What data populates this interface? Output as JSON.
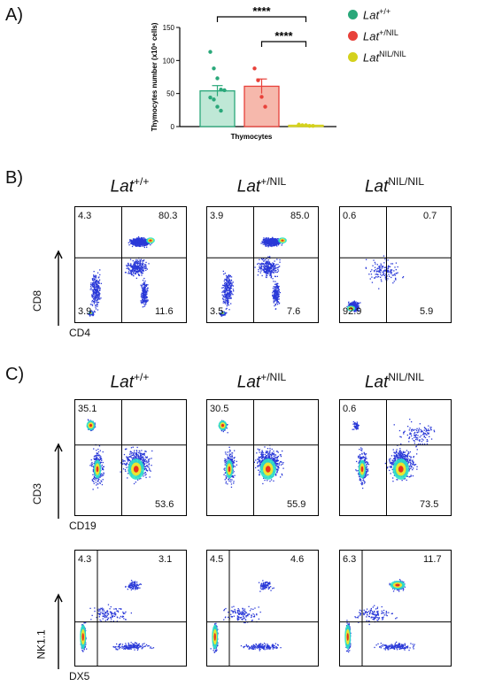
{
  "panels": {
    "a": "A)",
    "b": "B)",
    "c": "C)"
  },
  "chart_data": [
    {
      "type": "bar",
      "categories": [
        "Thymocytes"
      ],
      "xlabel": "Thymocytes",
      "ylabel": "Thymocytes number (x10⁶ cells)",
      "ylim": [
        0,
        150
      ],
      "yticks": [
        0,
        50,
        100,
        150
      ],
      "series": [
        {
          "name": "Lat+/+",
          "value": 54,
          "sem": 8,
          "color": "#2aa87a",
          "fill": "#bfe8d6",
          "points": [
            113,
            88,
            73,
            56,
            55,
            44,
            41,
            30,
            24
          ]
        },
        {
          "name": "Lat+/NIL",
          "value": 61,
          "sem": 11,
          "color": "#e8413a",
          "fill": "#f6b8ac",
          "points": [
            88,
            70,
            45,
            30
          ]
        },
        {
          "name": "LatNIL/NIL",
          "value": 2,
          "sem": 0.5,
          "color": "#d4d11c",
          "fill": "#eeed9a",
          "points": [
            3,
            2,
            2,
            1,
            1,
            2
          ]
        }
      ],
      "significance": [
        {
          "from": "Lat+/+",
          "to": "LatNIL/NIL",
          "label": "****"
        },
        {
          "from": "Lat+/NIL",
          "to": "LatNIL/NIL",
          "label": "****"
        }
      ],
      "legend": {
        "placement": "right",
        "items": [
          {
            "base": "Lat",
            "sup": "+/+",
            "color": "#2aa87a"
          },
          {
            "base": "Lat",
            "sup": "+/NIL",
            "color": "#e8413a"
          },
          {
            "base": "Lat",
            "sup": "NIL/NIL",
            "color": "#d4d11c"
          }
        ]
      }
    },
    {
      "type": "scatter",
      "panel": "B",
      "xlabel": "CD4",
      "ylabel": "CD8",
      "genotypes": [
        {
          "base": "Lat",
          "sup": "+/+",
          "quadrants": {
            "ul": "4.3",
            "ur": "80.3",
            "ll": "3.9",
            "lr": "11.6"
          }
        },
        {
          "base": "Lat",
          "sup": "+/NIL",
          "quadrants": {
            "ul": "3.9",
            "ur": "85.0",
            "ll": "3.5",
            "lr": "7.6"
          }
        },
        {
          "base": "Lat",
          "sup": "NIL/NIL",
          "quadrants": {
            "ul": "0.6",
            "ur": "0.7",
            "ll": "92.9",
            "lr": "5.9"
          }
        }
      ]
    },
    {
      "type": "scatter",
      "panel": "C-top",
      "xlabel": "CD19",
      "ylabel": "CD3",
      "genotypes": [
        {
          "base": "Lat",
          "sup": "+/+",
          "quadrants": {
            "ul": "35.1",
            "lr": "53.6"
          }
        },
        {
          "base": "Lat",
          "sup": "+/NIL",
          "quadrants": {
            "ul": "30.5",
            "lr": "55.9"
          }
        },
        {
          "base": "Lat",
          "sup": "NIL/NIL",
          "quadrants": {
            "ul": "0.6",
            "lr": "73.5"
          }
        }
      ]
    },
    {
      "type": "scatter",
      "panel": "C-bottom",
      "xlabel": "DX5",
      "ylabel": "NK1.1",
      "genotypes": [
        {
          "quadrants": {
            "ul": "4.3",
            "ur": "3.1"
          }
        },
        {
          "quadrants": {
            "ul": "4.5",
            "ur": "4.6"
          }
        },
        {
          "quadrants": {
            "ul": "6.3",
            "ur": "11.7"
          }
        }
      ]
    }
  ]
}
